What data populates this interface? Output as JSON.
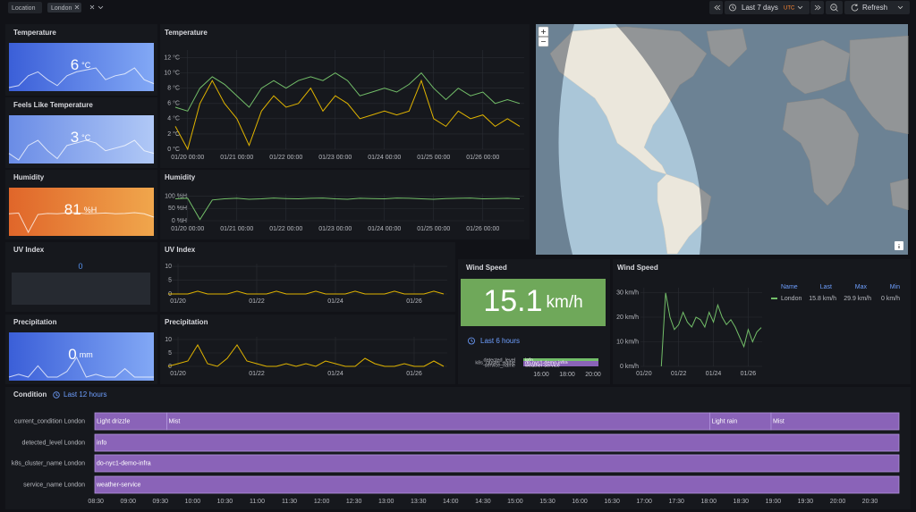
{
  "toolbar": {
    "variable": "Location",
    "value": "London",
    "time_range": "Last 7 days",
    "timezone": "UTC",
    "refresh": "Refresh"
  },
  "stats": [
    {
      "title": "Temperature",
      "value": 6,
      "unit": "°C",
      "colors": [
        "#3b5fd8",
        "#82a8f5"
      ],
      "sparkline": [
        5,
        5.5,
        8,
        9,
        7,
        5.5,
        8,
        9,
        9.5,
        10,
        7,
        8,
        8.5,
        10,
        7,
        6
      ]
    },
    {
      "title": "Feels Like Temperature",
      "value": 3,
      "unit": "°C",
      "colors": [
        "#6a8ce6",
        "#b0c8f6"
      ],
      "sparkline": [
        3,
        0.5,
        6,
        8,
        4,
        1,
        6,
        7,
        8,
        7,
        4,
        5,
        6,
        8,
        4,
        3
      ]
    },
    {
      "title": "Humidity",
      "value": 81,
      "unit": "%H",
      "colors": [
        "#e0662a",
        "#f0a64c"
      ],
      "sparkline": [
        90,
        92,
        40,
        88,
        91,
        90,
        92,
        93,
        90,
        91,
        92,
        90,
        91,
        93,
        90,
        81
      ]
    },
    {
      "title": "UV Index",
      "value": 0,
      "colors": [
        "#262a31",
        "#262a31"
      ]
    },
    {
      "title": "Precipitation",
      "value": 0,
      "unit": "mm",
      "colors": [
        "#3b5fd8",
        "#82a8f5"
      ],
      "sparkline": [
        0,
        1,
        0,
        4,
        0,
        0,
        2,
        7,
        0,
        1,
        0,
        0,
        3,
        0,
        0,
        0
      ]
    }
  ],
  "chart_data": [
    {
      "type": "line",
      "title": "Temperature",
      "x": [
        "01/19 18:00",
        "01/20 00:00",
        "01/20 06:00",
        "01/20 12:00",
        "01/20 18:00",
        "01/21 00:00",
        "01/21 06:00",
        "01/21 12:00",
        "01/21 18:00",
        "01/22 00:00",
        "01/22 06:00",
        "01/22 12:00",
        "01/22 18:00",
        "01/23 00:00",
        "01/23 06:00",
        "01/23 12:00",
        "01/23 18:00",
        "01/24 00:00",
        "01/24 06:00",
        "01/24 12:00",
        "01/24 18:00",
        "01/25 00:00",
        "01/25 06:00",
        "01/25 12:00",
        "01/25 18:00",
        "01/26 00:00",
        "01/26 06:00",
        "01/26 12:00",
        "01/26 18:00"
      ],
      "series": [
        {
          "color": "#73bf69",
          "values": [
            5.5,
            5,
            8,
            9.5,
            8.5,
            7,
            5.5,
            8,
            9,
            8,
            9,
            9.5,
            9,
            10,
            9,
            7,
            7.5,
            8,
            7.5,
            8.5,
            10,
            8,
            6.5,
            8,
            7,
            7.5,
            6,
            6.5,
            6
          ]
        },
        {
          "color": "#e0b400",
          "values": [
            3,
            0,
            6,
            9,
            6,
            4,
            0.5,
            5,
            7,
            5.5,
            6,
            8,
            5,
            7,
            6,
            4,
            4.5,
            5,
            4.5,
            5,
            9,
            4,
            3,
            5,
            4,
            4.5,
            3,
            4,
            3
          ]
        }
      ],
      "ylim": [
        0,
        13
      ],
      "yticks": [
        {
          "value": 0,
          "label": "0 °C"
        },
        {
          "value": 2,
          "label": "2 °C"
        },
        {
          "value": 4,
          "label": "4 °C"
        },
        {
          "value": 6,
          "label": "6 °C"
        },
        {
          "value": 8,
          "label": "8 °C"
        },
        {
          "value": 10,
          "label": "10 °C"
        },
        {
          "value": 12,
          "label": "12 °C"
        }
      ],
      "xticks": [
        "01/20 00:00",
        "01/21 00:00",
        "01/22 00:00",
        "01/23 00:00",
        "01/24 00:00",
        "01/25 00:00",
        "01/26 00:00"
      ],
      "grid": true
    },
    {
      "type": "line",
      "title": "Humidity",
      "x": [
        "01/19 18:00",
        "01/20 00:00",
        "01/20 06:00",
        "01/20 12:00",
        "01/20 18:00",
        "01/21 00:00",
        "01/21 06:00",
        "01/21 12:00",
        "01/21 18:00",
        "01/22 00:00",
        "01/22 06:00",
        "01/22 12:00",
        "01/22 18:00",
        "01/23 00:00",
        "01/23 06:00",
        "01/23 12:00",
        "01/23 18:00",
        "01/24 00:00",
        "01/24 06:00",
        "01/24 12:00",
        "01/24 18:00",
        "01/25 00:00",
        "01/25 06:00",
        "01/25 12:00",
        "01/25 18:00",
        "01/26 00:00",
        "01/26 06:00",
        "01/26 12:00",
        "01/26 18:00"
      ],
      "series": [
        {
          "color": "#73bf69",
          "values": [
            90,
            92,
            5,
            85,
            90,
            92,
            88,
            90,
            93,
            91,
            90,
            92,
            93,
            90,
            88,
            92,
            91,
            90,
            93,
            92,
            90,
            88,
            91,
            92,
            93,
            90,
            91,
            92,
            90
          ]
        }
      ],
      "ylim": [
        0,
        110
      ],
      "yticks": [
        {
          "value": 0,
          "label": "0 %H"
        },
        {
          "value": 50,
          "label": "50 %H"
        },
        {
          "value": 100,
          "label": "100 %H"
        }
      ],
      "xticks": [
        "01/20 00:00",
        "01/21 00:00",
        "01/22 00:00",
        "01/23 00:00",
        "01/24 00:00",
        "01/25 00:00",
        "01/26 00:00"
      ],
      "grid": true
    },
    {
      "type": "line",
      "title": "UV Index",
      "x": [
        "01/19 18:00",
        "01/20 00:00",
        "01/20 06:00",
        "01/20 12:00",
        "01/20 18:00",
        "01/21 00:00",
        "01/21 06:00",
        "01/21 12:00",
        "01/21 18:00",
        "01/22 00:00",
        "01/22 06:00",
        "01/22 12:00",
        "01/22 18:00",
        "01/23 00:00",
        "01/23 06:00",
        "01/23 12:00",
        "01/23 18:00",
        "01/24 00:00",
        "01/24 06:00",
        "01/24 12:00",
        "01/24 18:00",
        "01/25 00:00",
        "01/25 06:00",
        "01/25 12:00",
        "01/25 18:00",
        "01/26 00:00",
        "01/26 06:00",
        "01/26 12:00",
        "01/26 18:00"
      ],
      "series": [
        {
          "color": "#e0b400",
          "values": [
            0,
            0,
            0,
            1,
            0,
            0,
            0,
            1,
            0,
            0,
            0,
            1,
            0,
            0,
            0,
            1,
            0,
            0,
            0,
            1,
            0,
            0,
            0,
            1,
            0,
            0,
            0,
            1,
            0
          ]
        }
      ],
      "ylim": [
        0,
        11
      ],
      "yticks": [
        0,
        5,
        10
      ],
      "xticks": [
        {
          "value": "01/20 00:00",
          "label": "01/20"
        },
        {
          "value": "01/22 00:00",
          "label": "01/22"
        },
        {
          "value": "01/24 00:00",
          "label": "01/24"
        },
        {
          "value": "01/26 00:00",
          "label": "01/26"
        }
      ],
      "grid": true
    },
    {
      "type": "line",
      "title": "Precipitation",
      "x": [
        "01/19 18:00",
        "01/20 00:00",
        "01/20 06:00",
        "01/20 12:00",
        "01/20 18:00",
        "01/21 00:00",
        "01/21 06:00",
        "01/21 12:00",
        "01/21 18:00",
        "01/22 00:00",
        "01/22 06:00",
        "01/22 12:00",
        "01/22 18:00",
        "01/23 00:00",
        "01/23 06:00",
        "01/23 12:00",
        "01/23 18:00",
        "01/24 00:00",
        "01/24 06:00",
        "01/24 12:00",
        "01/24 18:00",
        "01/25 00:00",
        "01/25 06:00",
        "01/25 12:00",
        "01/25 18:00",
        "01/26 00:00",
        "01/26 06:00",
        "01/26 12:00",
        "01/26 18:00"
      ],
      "series": [
        {
          "color": "#e0b400",
          "values": [
            0,
            1,
            2,
            8,
            1,
            0,
            3,
            8,
            2,
            1,
            0,
            0,
            1,
            0,
            1,
            0,
            2,
            1,
            0,
            0,
            3,
            1,
            0,
            0,
            1,
            0,
            0,
            2,
            0
          ]
        }
      ],
      "ylim": [
        0,
        11
      ],
      "yticks": [
        0,
        5,
        10
      ],
      "xticks": [
        {
          "value": "01/20 00:00",
          "label": "01/20"
        },
        {
          "value": "01/22 00:00",
          "label": "01/22"
        },
        {
          "value": "01/24 00:00",
          "label": "01/24"
        },
        {
          "value": "01/26 00:00",
          "label": "01/26"
        }
      ],
      "grid": true
    },
    {
      "type": "line",
      "title": "Wind Speed",
      "x": [
        "01/19 18:00",
        "01/20 00:00",
        "01/20 06:00",
        "01/20 12:00",
        "01/20 18:00",
        "01/21 00:00",
        "01/21 06:00",
        "01/21 12:00",
        "01/21 18:00",
        "01/22 00:00",
        "01/22 06:00",
        "01/22 12:00",
        "01/22 18:00",
        "01/23 00:00",
        "01/23 06:00",
        "01/23 12:00",
        "01/23 18:00",
        "01/24 00:00",
        "01/24 06:00",
        "01/24 12:00",
        "01/24 18:00",
        "01/25 00:00",
        "01/25 06:00",
        "01/25 12:00",
        "01/25 18:00",
        "01/26 00:00",
        "01/26 06:00",
        "01/26 12:00",
        "01/26 18:00"
      ],
      "series": [
        {
          "name": "London",
          "color": "#73bf69",
          "values": [
            null,
            null,
            null,
            null,
            null,
            0,
            29.9,
            20,
            15,
            17,
            22,
            18,
            16,
            20,
            19,
            16,
            22,
            18,
            25,
            20,
            17,
            19,
            16,
            12,
            8,
            15,
            10,
            14,
            15.8
          ]
        }
      ],
      "ylim": [
        0,
        32
      ],
      "yticks": [
        {
          "value": 0,
          "label": "0 km/h"
        },
        {
          "value": 10,
          "label": "10 km/h"
        },
        {
          "value": 20,
          "label": "20 km/h"
        },
        {
          "value": 30,
          "label": "30 km/h"
        }
      ],
      "xticks": [
        {
          "value": "01/20 00:00",
          "label": "01/20"
        },
        {
          "value": "01/22 00:00",
          "label": "01/22"
        },
        {
          "value": "01/24 00:00",
          "label": "01/24"
        },
        {
          "value": "01/26 00:00",
          "label": "01/26"
        }
      ],
      "grid": true,
      "legend_headers": [
        "Name",
        "Last",
        "Max",
        "Min"
      ],
      "legend_values": [
        "15.8 km/h",
        "29.9 km/h",
        "0 km/h"
      ]
    }
  ],
  "wind_stat": {
    "title": "Wind Speed",
    "value": 15.1,
    "unit": "km/h",
    "color": "#6fa85a",
    "time_range": "Last 6 hours"
  },
  "logs": {
    "labels": [
      "detected_level",
      "k8s_cluster_name",
      "service_name"
    ],
    "values": [
      "info",
      "do-nyc1-demo-infra",
      "weather-service"
    ],
    "xticks": [
      "16:00",
      "18:00",
      "20:00"
    ]
  },
  "condition": {
    "title": "Condition",
    "time_range": "Last 12 hours",
    "color": "#8a63b8",
    "xlim": [
      "08:29",
      "20:57"
    ],
    "xticks": [
      "08:30",
      "09:00",
      "09:30",
      "10:00",
      "10:30",
      "11:00",
      "11:30",
      "12:00",
      "12:30",
      "13:00",
      "13:30",
      "14:00",
      "14:30",
      "15:00",
      "15:30",
      "16:00",
      "16:30",
      "17:00",
      "17:30",
      "18:00",
      "18:30",
      "19:00",
      "19:30",
      "20:00",
      "20:30"
    ],
    "rows": [
      {
        "label": "current_condition London",
        "segments": [
          {
            "start": "08:29",
            "end": "09:36",
            "text": "Light drizzle"
          },
          {
            "start": "09:36",
            "end": "18:01",
            "text": "Mist"
          },
          {
            "start": "18:01",
            "end": "18:58",
            "text": "Light rain"
          },
          {
            "start": "18:58",
            "end": "20:57",
            "text": "Mist"
          }
        ]
      },
      {
        "label": "detected_level London",
        "segments": [
          {
            "start": "08:29",
            "end": "20:57",
            "text": "info"
          }
        ]
      },
      {
        "label": "k8s_cluster_name London",
        "segments": [
          {
            "start": "08:29",
            "end": "20:57",
            "text": "do-nyc1-demo-infra"
          }
        ]
      },
      {
        "label": "service_name London",
        "segments": [
          {
            "start": "08:29",
            "end": "20:57",
            "text": "weather-service"
          }
        ]
      }
    ]
  }
}
